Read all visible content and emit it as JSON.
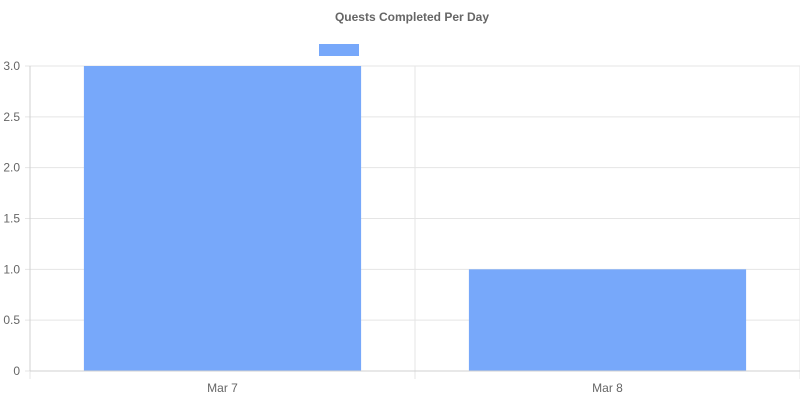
{
  "chart_data": {
    "type": "bar",
    "title": "Quests Completed Per Day",
    "categories": [
      "Mar 7",
      "Mar 8"
    ],
    "series": [
      {
        "values": [
          3,
          1
        ],
        "color": "#77a8fa"
      }
    ],
    "xlabel": "",
    "ylabel": "",
    "ylim": [
      0,
      3
    ],
    "yticks": [
      "0",
      "0.5",
      "1.0",
      "1.5",
      "2.0",
      "2.5",
      "3.0"
    ],
    "grid": true,
    "legend": {
      "position": "top",
      "entries": [
        {
          "label": "",
          "color": "#77a8fa"
        }
      ]
    }
  }
}
